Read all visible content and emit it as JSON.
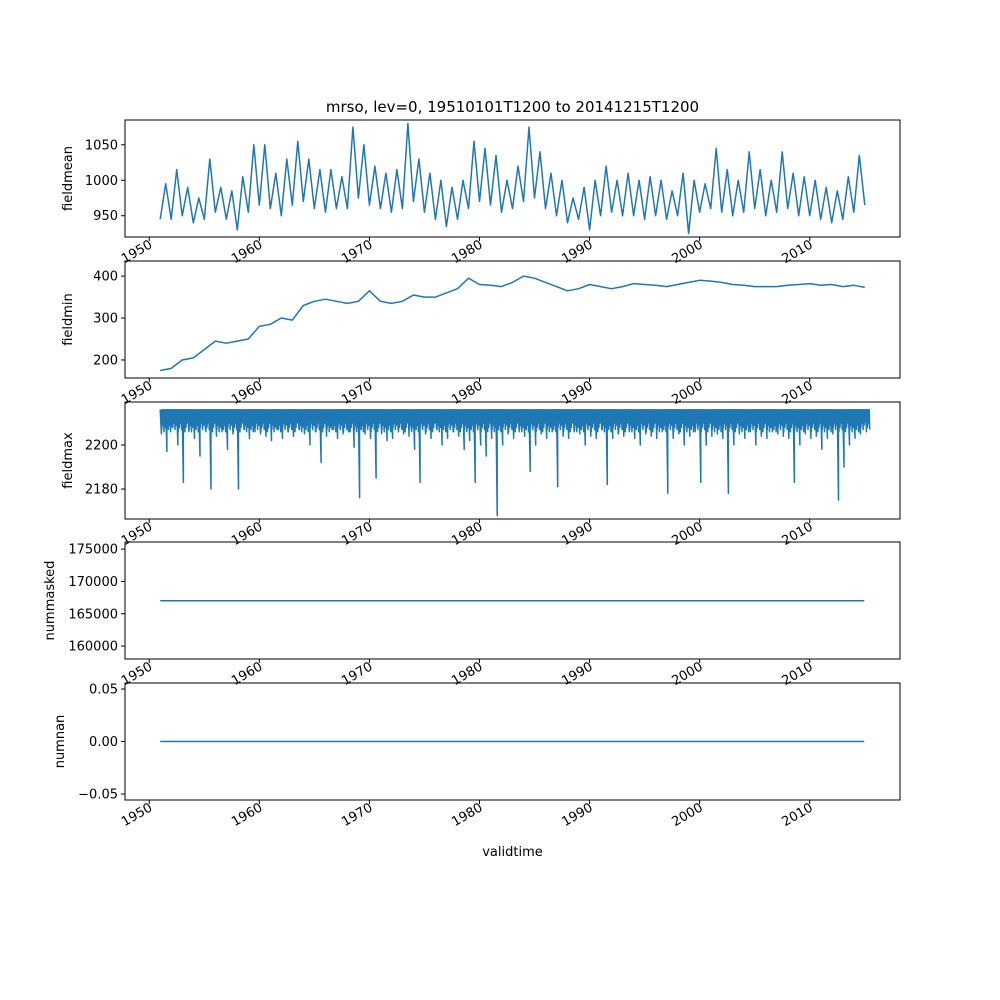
{
  "chart_data": [
    {
      "type": "line",
      "title": "mrso, lev=0, 19510101T1200 to 20141215T1200",
      "ylabel": "fieldmean",
      "xlabel": "",
      "ylim": [
        920,
        1085
      ],
      "yticks": [
        950,
        1000,
        1050
      ],
      "x_start": 1951.0,
      "x_step": 0.5,
      "y": [
        945,
        995,
        945,
        1015,
        950,
        990,
        940,
        975,
        945,
        1030,
        955,
        990,
        945,
        985,
        930,
        1005,
        955,
        1050,
        965,
        1050,
        960,
        1010,
        950,
        1030,
        965,
        1055,
        970,
        1030,
        960,
        1015,
        955,
        1015,
        960,
        1005,
        960,
        1075,
        975,
        1050,
        965,
        1020,
        960,
        1010,
        955,
        1015,
        960,
        1080,
        970,
        1030,
        955,
        1010,
        945,
        1000,
        935,
        990,
        945,
        1000,
        960,
        1055,
        970,
        1045,
        965,
        1035,
        955,
        1000,
        960,
        1020,
        970,
        1075,
        975,
        1040,
        960,
        1010,
        950,
        1000,
        940,
        975,
        945,
        990,
        930,
        1000,
        950,
        1020,
        955,
        1000,
        950,
        1010,
        950,
        1000,
        945,
        1005,
        950,
        1000,
        945,
        985,
        950,
        1010,
        925,
        1000,
        955,
        995,
        960,
        1045,
        955,
        1015,
        950,
        1000,
        955,
        1040,
        960,
        1015,
        950,
        1000,
        955,
        1040,
        960,
        1010,
        950,
        1005,
        950,
        1000,
        945,
        990,
        940,
        985,
        945,
        1005,
        955,
        1035,
        965
      ]
    },
    {
      "type": "line",
      "ylabel": "fieldmin",
      "ylim": [
        157,
        436
      ],
      "yticks": [
        200,
        300,
        400
      ],
      "x_start": 1951.0,
      "x_step": 1.0,
      "y": [
        175,
        180,
        200,
        205,
        225,
        245,
        240,
        245,
        250,
        280,
        285,
        300,
        295,
        330,
        340,
        345,
        340,
        335,
        340,
        365,
        340,
        335,
        340,
        355,
        350,
        350,
        360,
        370,
        395,
        380,
        378,
        375,
        385,
        400,
        395,
        385,
        375,
        365,
        370,
        380,
        375,
        370,
        375,
        382,
        380,
        378,
        375,
        380,
        385,
        390,
        388,
        385,
        380,
        378,
        375,
        375,
        375,
        378,
        380,
        382,
        378,
        380,
        375,
        378,
        373
      ]
    },
    {
      "type": "line",
      "ylabel": "fieldmax",
      "ylim": [
        2166.4,
        2219.5
      ],
      "yticks": [
        2180,
        2200
      ],
      "upper": 2216,
      "x_start": 1951.0,
      "x_step": 0.5,
      "y": [
        2205,
        2197,
        2208,
        2200,
        2183,
        2206,
        2203,
        2195,
        2207,
        2180,
        2204,
        2206,
        2198,
        2205,
        2180,
        2207,
        2203,
        2206,
        2205,
        2204,
        2202,
        2207,
        2203,
        2206,
        2204,
        2207,
        2205,
        2200,
        2206,
        2192,
        2204,
        2207,
        2203,
        2205,
        2206,
        2199,
        2176,
        2205,
        2203,
        2185,
        2205,
        2202,
        2203,
        2207,
        2205,
        2204,
        2198,
        2183,
        2205,
        2203,
        2207,
        2200,
        2203,
        2206,
        2204,
        2198,
        2202,
        2183,
        2200,
        2195,
        2203,
        2168,
        2200,
        2205,
        2203,
        2206,
        2204,
        2188,
        2200,
        2205,
        2203,
        2206,
        2181,
        2204,
        2203,
        2206,
        2205,
        2200,
        2204,
        2203,
        2207,
        2182,
        2203,
        2205,
        2204,
        2206,
        2203,
        2200,
        2205,
        2204,
        2203,
        2206,
        2178,
        2203,
        2205,
        2200,
        2204,
        2206,
        2183,
        2200,
        2204,
        2205,
        2203,
        2178,
        2200,
        2205,
        2203,
        2206,
        2200,
        2204,
        2203,
        2206,
        2205,
        2204,
        2203,
        2183,
        2200,
        2205,
        2203,
        2204,
        2198,
        2203,
        2205,
        2175,
        2190,
        2200,
        2203,
        2205,
        2210
      ]
    },
    {
      "type": "line",
      "ylabel": "nummasked",
      "ylim": [
        158000,
        176100
      ],
      "yticks": [
        160000,
        165000,
        170000,
        175000
      ],
      "x": [
        1951.0,
        2014.96
      ],
      "y": [
        167000,
        167000
      ]
    },
    {
      "type": "line",
      "ylabel": "numnan",
      "xlabel": "validtime",
      "ylim": [
        -0.0557,
        0.0557
      ],
      "yticks": [
        -0.05,
        0.0,
        0.05
      ],
      "ytick_labels": [
        "−0.05",
        "0.00",
        "0.05"
      ],
      "x": [
        1951.0,
        2014.96
      ],
      "y": [
        0,
        0
      ]
    }
  ],
  "xlim": [
    1947.8,
    2018.2
  ],
  "xticks": [
    1950,
    1960,
    1970,
    1980,
    1990,
    2000,
    2010
  ],
  "line_color": "#1f77b4"
}
